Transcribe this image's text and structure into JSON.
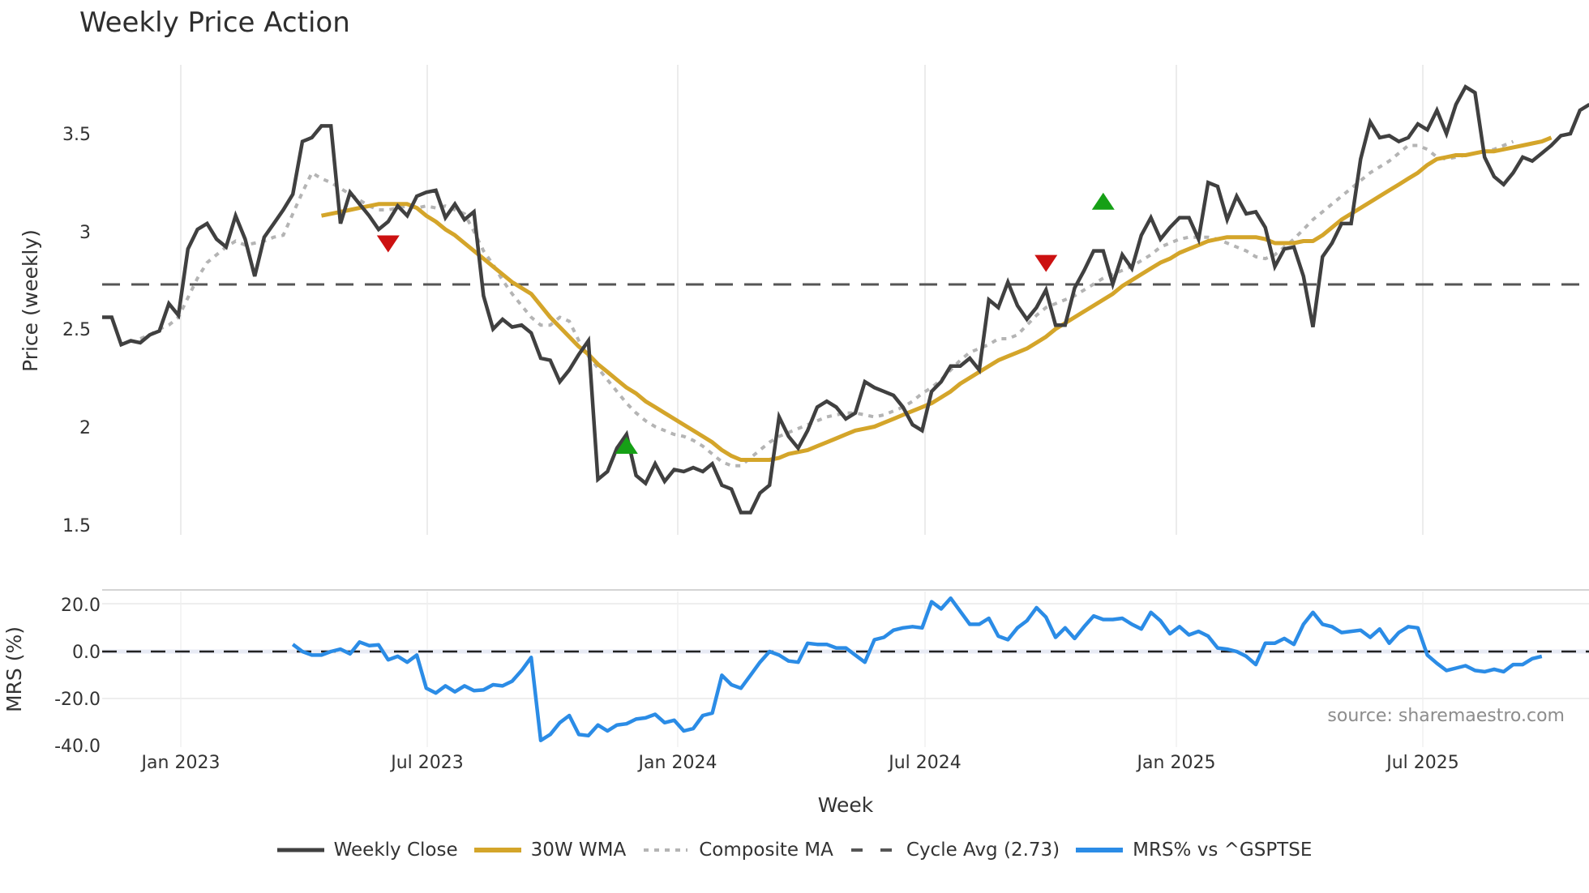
{
  "title": "Weekly Price Action",
  "source_label": "source: sharemaestro.com",
  "price_panel": {
    "ylabel": "Price (weekly)",
    "yticks": [
      "1.5",
      "2",
      "2.5",
      "3",
      "3.5"
    ]
  },
  "mrs_panel": {
    "ylabel": "MRS (%)",
    "yticks": [
      "-40.0",
      "-20.0",
      "0.0",
      "20.0"
    ]
  },
  "xaxis": {
    "title": "Week",
    "ticks": [
      "Jan 2023",
      "Jul 2023",
      "Jan 2024",
      "Jul 2024",
      "Jan 2025",
      "Jul 2025"
    ]
  },
  "legend": [
    {
      "label": "Weekly Close",
      "color": "#404040",
      "style": "solid"
    },
    {
      "label": "30W WMA",
      "color": "#d4a52a",
      "style": "solid"
    },
    {
      "label": "Composite MA",
      "color": "#b4b4b4",
      "style": "dotted"
    },
    {
      "label": "Cycle Avg (2.73)",
      "color": "#555555",
      "style": "dashed"
    },
    {
      "label": "MRS% vs ^GSPTSE",
      "color": "#2b8ce6",
      "style": "solid"
    }
  ],
  "chart_data": [
    {
      "type": "line",
      "title": "Weekly Price Action",
      "xlabel": "Week",
      "ylabel": "Price (weekly)",
      "ylim": [
        1.45,
        3.85
      ],
      "x_start": "2022-11-07",
      "x_step": "1 week",
      "x_ticks": [
        "Jan 2023",
        "Jul 2023",
        "Jan 2024",
        "Jul 2024",
        "Jan 2025",
        "Jul 2025"
      ],
      "grid": "vertical",
      "legend_position": "bottom",
      "cycle_avg": 2.73,
      "series": [
        {
          "name": "Weekly Close",
          "values": [
            2.56,
            2.56,
            2.42,
            2.44,
            2.43,
            2.47,
            2.49,
            2.63,
            2.57,
            2.91,
            3.01,
            3.04,
            2.96,
            2.92,
            3.08,
            2.96,
            2.77,
            2.97,
            3.04,
            3.11,
            3.19,
            3.46,
            3.48,
            3.54,
            3.54,
            3.04,
            3.2,
            3.14,
            3.08,
            3.01,
            3.05,
            3.13,
            3.08,
            3.18,
            3.2,
            3.21,
            3.07,
            3.14,
            3.06,
            3.1,
            2.67,
            2.5,
            2.55,
            2.51,
            2.52,
            2.48,
            2.35,
            2.34,
            2.23,
            2.29,
            2.37,
            2.44,
            1.73,
            1.77,
            1.89,
            1.96,
            1.75,
            1.71,
            1.81,
            1.72,
            1.78,
            1.77,
            1.79,
            1.77,
            1.81,
            1.7,
            1.68,
            1.56,
            1.56,
            1.66,
            1.7,
            2.05,
            1.95,
            1.89,
            1.98,
            2.1,
            2.13,
            2.1,
            2.04,
            2.07,
            2.23,
            2.2,
            2.18,
            2.16,
            2.1,
            2.01,
            1.98,
            2.18,
            2.23,
            2.31,
            2.31,
            2.35,
            2.29,
            2.65,
            2.61,
            2.74,
            2.62,
            2.55,
            2.61,
            2.7,
            2.52,
            2.52,
            2.71,
            2.8,
            2.9,
            2.9,
            2.73,
            2.88,
            2.81,
            2.98,
            3.07,
            2.96,
            3.02,
            3.07,
            3.07,
            2.96,
            3.25,
            3.23,
            3.06,
            3.18,
            3.09,
            3.1,
            3.02,
            2.82,
            2.91,
            2.92,
            2.77,
            2.51,
            2.87,
            2.94,
            3.04,
            3.04,
            3.37,
            3.56,
            3.48,
            3.49,
            3.46,
            3.48,
            3.55,
            3.52,
            3.62,
            3.5,
            3.65,
            3.74,
            3.71,
            3.38,
            3.28,
            3.24,
            3.3,
            3.38,
            3.36,
            3.4,
            3.44,
            3.49,
            3.5,
            3.62,
            3.65
          ]
        },
        {
          "name": "30W WMA",
          "start_index": 23,
          "values": [
            3.08,
            3.09,
            3.1,
            3.11,
            3.12,
            3.13,
            3.14,
            3.14,
            3.14,
            3.14,
            3.12,
            3.08,
            3.05,
            3.01,
            2.98,
            2.94,
            2.9,
            2.86,
            2.82,
            2.78,
            2.74,
            2.71,
            2.68,
            2.62,
            2.56,
            2.51,
            2.46,
            2.41,
            2.37,
            2.32,
            2.28,
            2.24,
            2.2,
            2.17,
            2.13,
            2.1,
            2.07,
            2.04,
            2.01,
            1.98,
            1.95,
            1.92,
            1.88,
            1.85,
            1.83,
            1.83,
            1.83,
            1.83,
            1.84,
            1.86,
            1.87,
            1.88,
            1.9,
            1.92,
            1.94,
            1.96,
            1.98,
            1.99,
            2.0,
            2.02,
            2.04,
            2.06,
            2.08,
            2.1,
            2.12,
            2.15,
            2.18,
            2.22,
            2.25,
            2.28,
            2.31,
            2.34,
            2.36,
            2.38,
            2.4,
            2.43,
            2.46,
            2.5,
            2.53,
            2.56,
            2.59,
            2.62,
            2.65,
            2.68,
            2.72,
            2.75,
            2.78,
            2.81,
            2.84,
            2.86,
            2.89,
            2.91,
            2.93,
            2.95,
            2.96,
            2.97,
            2.97,
            2.97,
            2.97,
            2.96,
            2.94,
            2.94,
            2.94,
            2.95,
            2.95,
            2.98,
            3.02,
            3.06,
            3.09,
            3.12,
            3.15,
            3.18,
            3.21,
            3.24,
            3.27,
            3.3,
            3.34,
            3.37,
            3.38,
            3.39,
            3.39,
            3.4,
            3.41,
            3.41,
            3.42,
            3.43,
            3.44,
            3.45,
            3.46,
            3.48
          ]
        },
        {
          "name": "Composite MA",
          "start_index": 4,
          "values": [
            2.45,
            2.47,
            2.5,
            2.52,
            2.56,
            2.66,
            2.76,
            2.84,
            2.88,
            2.92,
            2.95,
            2.93,
            2.94,
            2.95,
            2.97,
            2.98,
            3.09,
            3.2,
            3.3,
            3.27,
            3.25,
            3.22,
            3.19,
            3.16,
            3.13,
            3.11,
            3.11,
            3.12,
            3.13,
            3.12,
            3.13,
            3.12,
            3.13,
            3.11,
            3.09,
            3.0,
            2.9,
            2.83,
            2.75,
            2.68,
            2.62,
            2.56,
            2.52,
            2.52,
            2.56,
            2.54,
            2.44,
            2.36,
            2.3,
            2.24,
            2.18,
            2.12,
            2.07,
            2.03,
            2.0,
            1.98,
            1.96,
            1.95,
            1.93,
            1.9,
            1.86,
            1.82,
            1.8,
            1.8,
            1.84,
            1.88,
            1.92,
            1.95,
            1.97,
            1.99,
            2.01,
            2.03,
            2.05,
            2.06,
            2.07,
            2.07,
            2.06,
            2.05,
            2.06,
            2.08,
            2.1,
            2.13,
            2.17,
            2.2,
            2.24,
            2.29,
            2.34,
            2.38,
            2.4,
            2.42,
            2.45,
            2.45,
            2.47,
            2.52,
            2.57,
            2.61,
            2.63,
            2.65,
            2.67,
            2.7,
            2.73,
            2.76,
            2.78,
            2.8,
            2.82,
            2.85,
            2.88,
            2.92,
            2.94,
            2.96,
            2.97,
            2.97,
            2.97,
            2.96,
            2.94,
            2.92,
            2.9,
            2.87,
            2.86,
            2.88,
            2.92,
            2.96,
            3.01,
            3.06,
            3.1,
            3.14,
            3.18,
            3.22,
            3.26,
            3.3,
            3.33,
            3.36,
            3.4,
            3.44,
            3.44,
            3.42,
            3.38,
            3.37,
            3.38,
            3.39,
            3.4,
            3.41,
            3.42,
            3.44,
            3.46
          ]
        }
      ],
      "markers": [
        {
          "type": "sell",
          "shape": "triangle-down",
          "color": "#cc1111",
          "x_index": 30,
          "y": 2.95
        },
        {
          "type": "buy",
          "shape": "triangle-up",
          "color": "#16a016",
          "x_index": 55,
          "y": 1.89
        },
        {
          "type": "sell",
          "shape": "triangle-down",
          "color": "#cc1111",
          "x_index": 99,
          "y": 2.85
        },
        {
          "type": "buy",
          "shape": "triangle-up",
          "color": "#16a016",
          "x_index": 105,
          "y": 3.14
        }
      ]
    },
    {
      "type": "line",
      "title": "",
      "xlabel": "Week",
      "ylabel": "MRS (%)",
      "ylim": [
        -42,
        26
      ],
      "reference_line": 0,
      "series": [
        {
          "name": "MRS% vs ^GSPTSE",
          "start_index": 20,
          "values": [
            3.0,
            0.0,
            -1.5,
            -1.5,
            0.0,
            1.0,
            -1.0,
            4.0,
            2.5,
            2.8,
            -3.5,
            -2.0,
            -4.5,
            -1.5,
            -15.5,
            -17.5,
            -14.5,
            -17.0,
            -14.5,
            -16.5,
            -16.2,
            -14.0,
            -14.5,
            -12.5,
            -8.0,
            -2.5,
            -37.5,
            -35.0,
            -30.0,
            -27.0,
            -35.0,
            -35.5,
            -31.0,
            -33.5,
            -31.0,
            -30.5,
            -28.5,
            -28.0,
            -26.5,
            -30.0,
            -29.0,
            -33.5,
            -32.5,
            -27.0,
            -26.0,
            -10.0,
            -14.0,
            -15.5,
            -10.0,
            -4.5,
            0.0,
            -1.5,
            -4.0,
            -4.5,
            3.5,
            3.0,
            3.0,
            1.5,
            1.5,
            -1.5,
            -4.5,
            5.0,
            6.0,
            9.0,
            10.0,
            10.5,
            10.0,
            21.0,
            18.0,
            22.5,
            17.0,
            11.5,
            11.5,
            14.0,
            6.5,
            5.0,
            10.0,
            13.0,
            18.5,
            14.5,
            6.0,
            10.0,
            5.5,
            10.5,
            15.0,
            13.5,
            13.5,
            14.0,
            11.5,
            9.5,
            16.5,
            13.0,
            7.5,
            10.5,
            7.0,
            8.5,
            6.5,
            1.5,
            1.0,
            0.0,
            -2.0,
            -5.5,
            3.5,
            3.5,
            5.5,
            3.0,
            11.5,
            16.5,
            11.5,
            10.5,
            8.0,
            8.5,
            9.0,
            6.0,
            9.5,
            3.5,
            8.0,
            10.5,
            10.0,
            -1.5,
            -5.0,
            -8.0,
            -7.0,
            -6.0,
            -8.0,
            -8.5,
            -7.5,
            -8.5,
            -5.5,
            -5.5,
            -3.0,
            -2.0
          ]
        }
      ]
    }
  ]
}
